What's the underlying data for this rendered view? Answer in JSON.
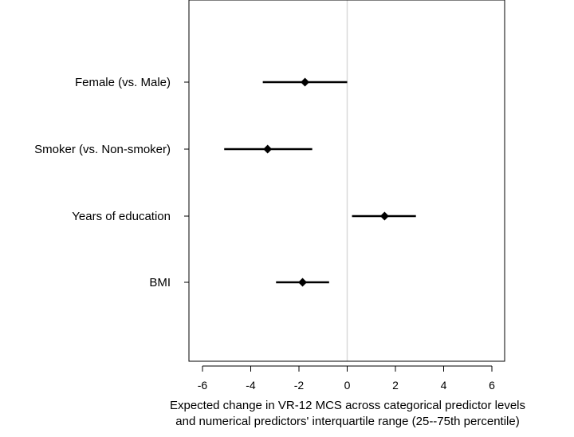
{
  "chart_data": {
    "type": "forest",
    "categories": [
      "Female (vs. Male)",
      "Smoker (vs. Non-smoker)",
      "Years of education",
      "BMI"
    ],
    "estimates": [
      -1.75,
      -3.3,
      1.55,
      -1.85
    ],
    "ci_lower": [
      -3.5,
      -5.1,
      0.2,
      -2.95
    ],
    "ci_upper": [
      0.0,
      -1.45,
      2.85,
      -0.75
    ],
    "xlim": [
      -6,
      6
    ],
    "xticks": [
      -6,
      -4,
      -2,
      0,
      2,
      4,
      6
    ],
    "xtick_labels": [
      "-6",
      "-4",
      "-2",
      "0",
      "2",
      "4",
      "6"
    ],
    "reference_line": 0,
    "xlabel_lines": [
      "Expected change in VR-12 MCS across categorical predictor levels",
      "and numerical predictors' interquartile range (25--75th percentile)"
    ],
    "ylabel": "",
    "title": "",
    "colors": {
      "marks": "#000000",
      "reference": "#d9d9d9",
      "frame": "#000000"
    }
  }
}
